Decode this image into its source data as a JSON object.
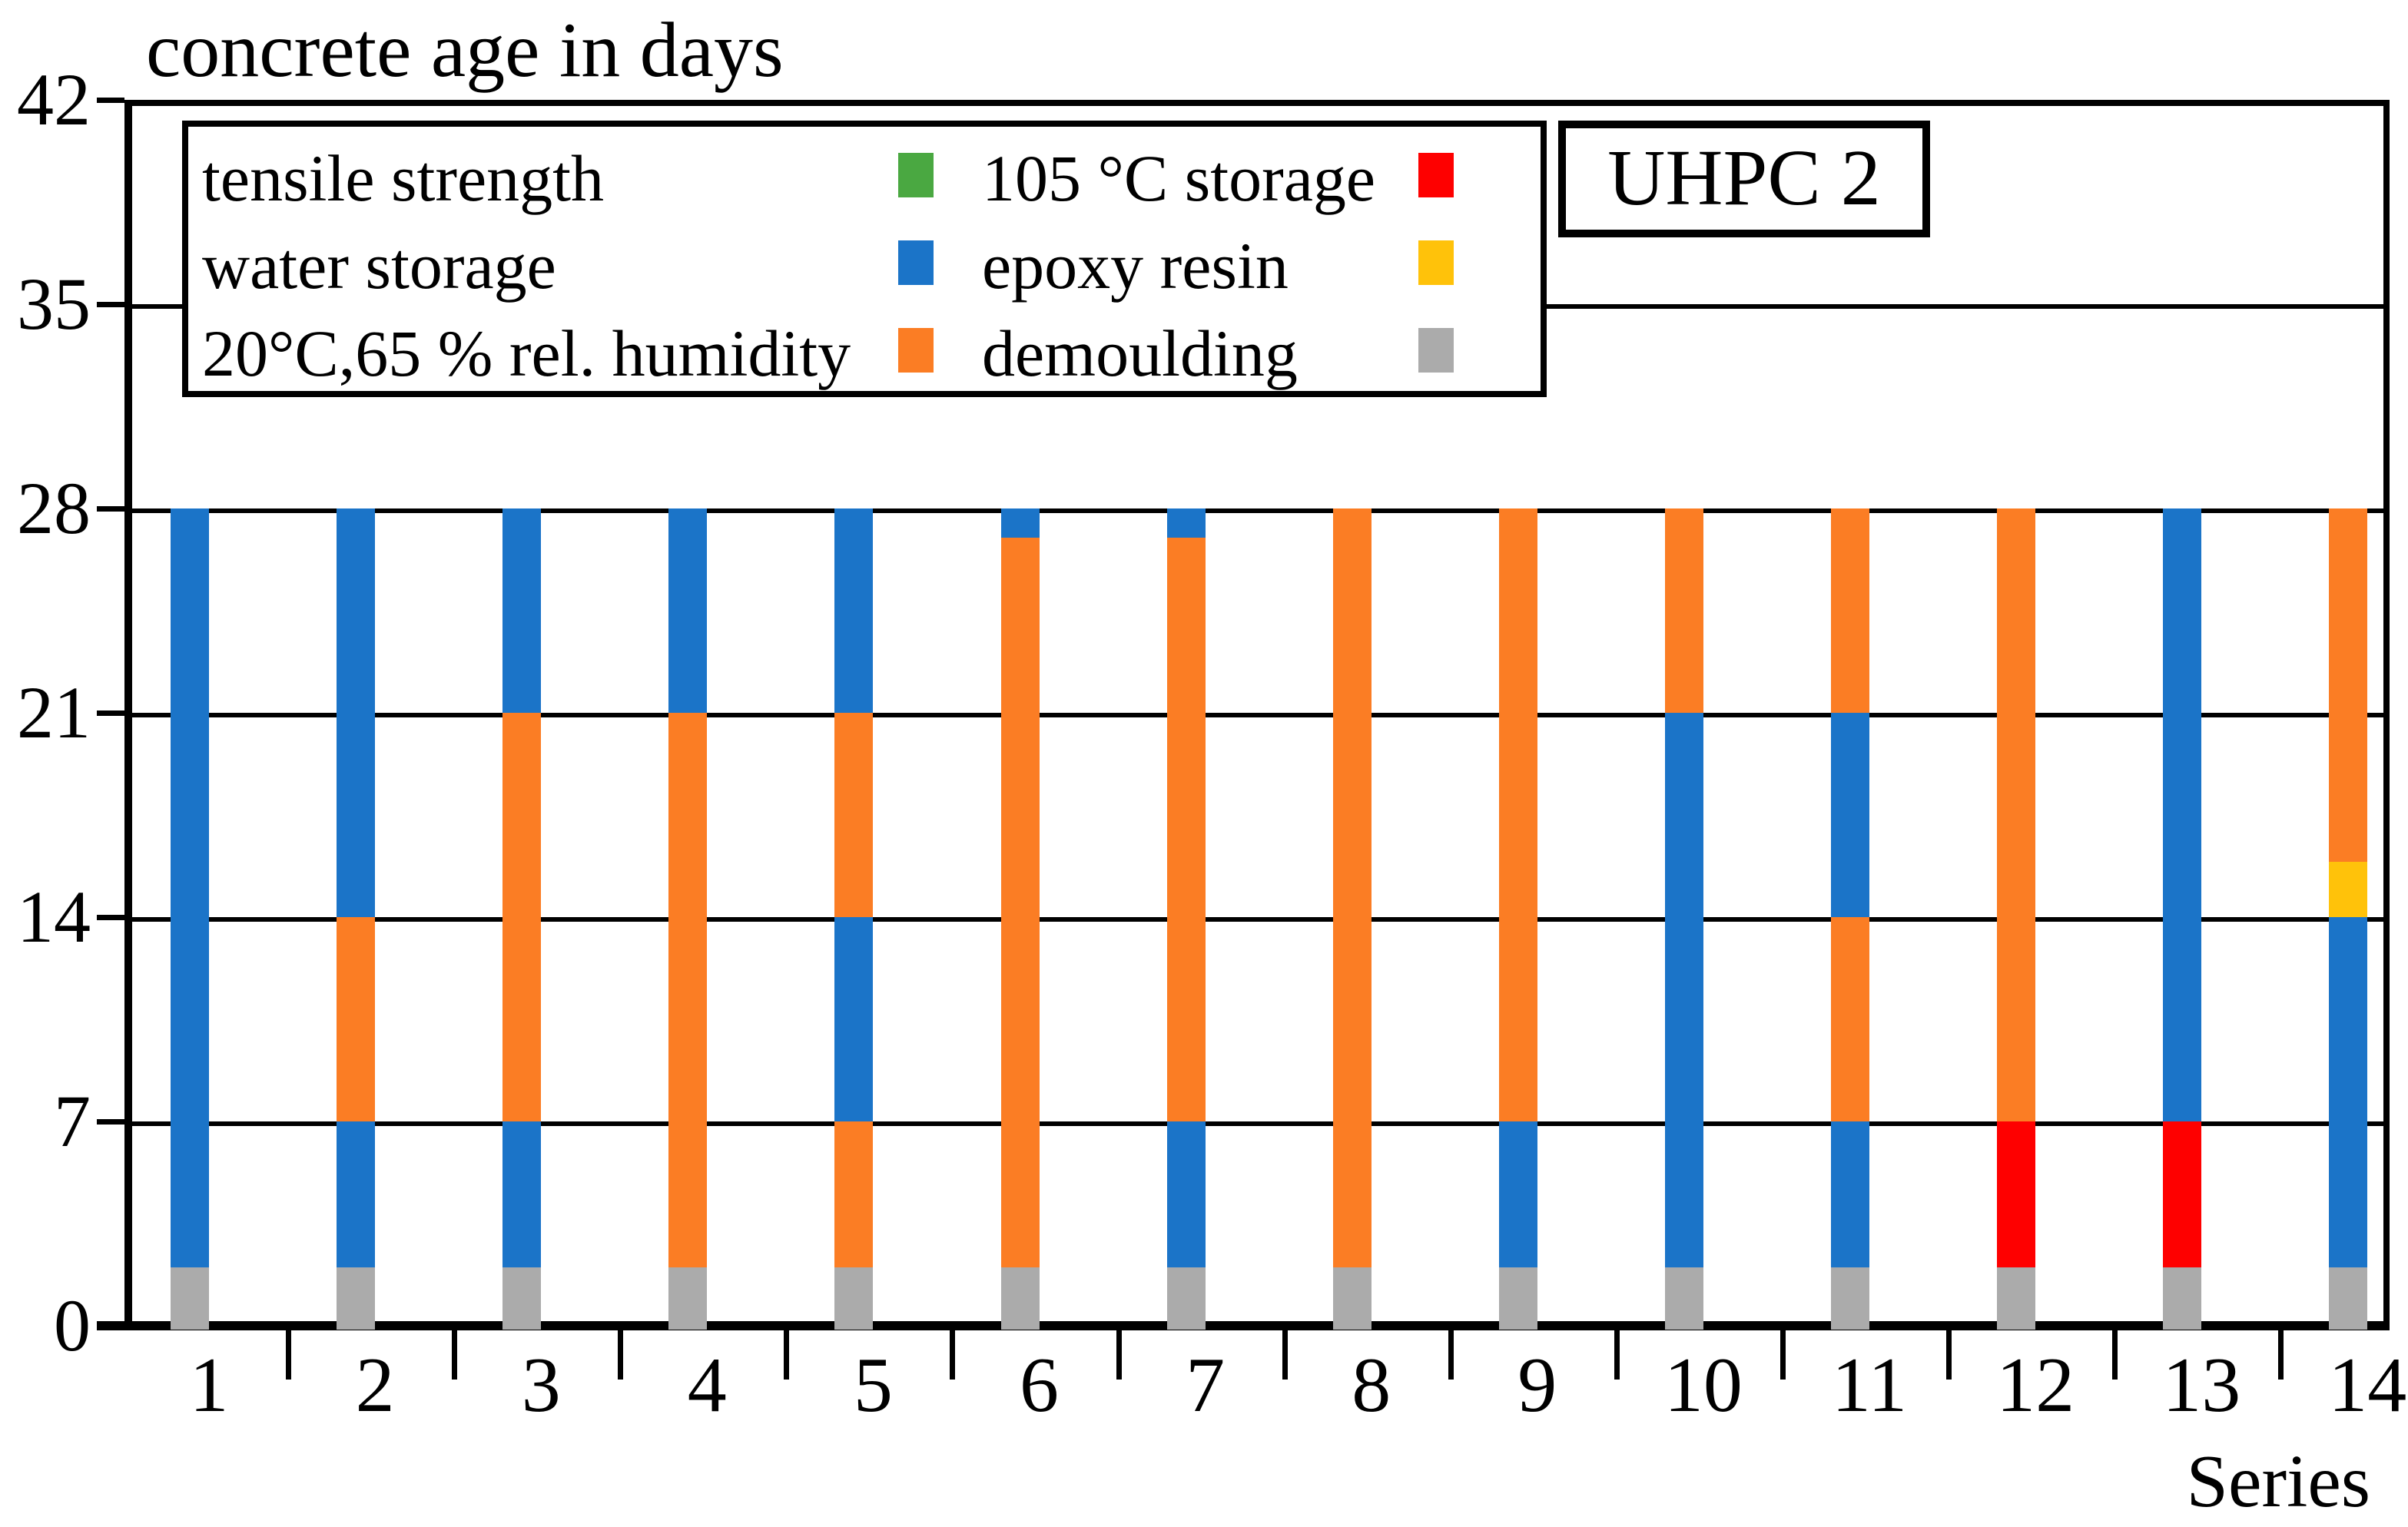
{
  "title": "concrete age in days",
  "annotation_box": {
    "label": "UHPC 2"
  },
  "axis": {
    "x_axis_title": "Series",
    "y_ticks": [
      {
        "label": "42",
        "value": 42
      },
      {
        "label": "35",
        "value": 35
      },
      {
        "label": "28",
        "value": 28
      },
      {
        "label": "21",
        "value": 21
      },
      {
        "label": "14",
        "value": 14
      },
      {
        "label": "7",
        "value": 7
      },
      {
        "label": "0",
        "value": 0
      }
    ],
    "x_tick_labels": [
      "1",
      "2",
      "3",
      "4",
      "5",
      "6",
      "7",
      "8",
      "9",
      "10",
      "11",
      "12",
      "13",
      "14"
    ]
  },
  "colors": {
    "tensile": "#4AA841",
    "water": "#1B74C8",
    "humidity": "#FB7D24",
    "heat105": "#FE0000",
    "epoxy": "#FFC20A",
    "demoulding": "#ABABAB"
  },
  "legend": {
    "columns": [
      {
        "items": [
          {
            "label": "tensile strength",
            "key": "tensile"
          },
          {
            "label": "water storage",
            "key": "water"
          },
          {
            "label": "20°C,65 % rel. humidity",
            "key": "humidity"
          }
        ]
      },
      {
        "items": [
          {
            "label": "105 °C storage",
            "key": "heat105"
          },
          {
            "label": "epoxy resin",
            "key": "epoxy"
          },
          {
            "label": "demoulding",
            "key": "demoulding"
          }
        ]
      }
    ]
  },
  "chart_data": {
    "type": "bar",
    "stacked": true,
    "title": "concrete age in days",
    "xlabel": "Series",
    "ylabel": "concrete age in days",
    "ylim": [
      0,
      42
    ],
    "grid_values": [
      7,
      14,
      21,
      28,
      35,
      42
    ],
    "legend_position": "top-left-inside",
    "categories": [
      "1",
      "2",
      "3",
      "4",
      "5",
      "6",
      "7",
      "8",
      "9",
      "10",
      "11",
      "12",
      "13",
      "14"
    ],
    "bars": [
      {
        "category": "1",
        "segments": [
          [
            "demoulding",
            0,
            2
          ],
          [
            "water",
            2,
            28
          ]
        ]
      },
      {
        "category": "2",
        "segments": [
          [
            "demoulding",
            0,
            2
          ],
          [
            "water",
            2,
            7
          ],
          [
            "humidity",
            7,
            14
          ],
          [
            "water",
            14,
            28
          ]
        ]
      },
      {
        "category": "3",
        "segments": [
          [
            "demoulding",
            0,
            2
          ],
          [
            "water",
            2,
            7
          ],
          [
            "humidity",
            7,
            21
          ],
          [
            "water",
            21,
            28
          ]
        ]
      },
      {
        "category": "4",
        "segments": [
          [
            "demoulding",
            0,
            2
          ],
          [
            "humidity",
            2,
            21
          ],
          [
            "water",
            21,
            28
          ]
        ]
      },
      {
        "category": "5",
        "segments": [
          [
            "demoulding",
            0,
            2
          ],
          [
            "humidity",
            2,
            7
          ],
          [
            "water",
            7,
            14
          ],
          [
            "humidity",
            14,
            21
          ],
          [
            "water",
            21,
            28
          ]
        ]
      },
      {
        "category": "6",
        "segments": [
          [
            "demoulding",
            0,
            2
          ],
          [
            "humidity",
            2,
            27
          ],
          [
            "water",
            27,
            28
          ]
        ]
      },
      {
        "category": "7",
        "segments": [
          [
            "demoulding",
            0,
            2
          ],
          [
            "water",
            2,
            7
          ],
          [
            "humidity",
            7,
            27
          ],
          [
            "water",
            27,
            28
          ]
        ]
      },
      {
        "category": "8",
        "segments": [
          [
            "demoulding",
            0,
            2
          ],
          [
            "humidity",
            2,
            28
          ]
        ]
      },
      {
        "category": "9",
        "segments": [
          [
            "demoulding",
            0,
            2
          ],
          [
            "water",
            2,
            7
          ],
          [
            "humidity",
            7,
            28
          ]
        ]
      },
      {
        "category": "10",
        "segments": [
          [
            "demoulding",
            0,
            2
          ],
          [
            "water",
            2,
            21
          ],
          [
            "humidity",
            21,
            28
          ]
        ]
      },
      {
        "category": "11",
        "segments": [
          [
            "demoulding",
            0,
            2
          ],
          [
            "water",
            2,
            7
          ],
          [
            "humidity",
            7,
            14
          ],
          [
            "water",
            14,
            21
          ],
          [
            "humidity",
            21,
            28
          ]
        ]
      },
      {
        "category": "12",
        "segments": [
          [
            "demoulding",
            0,
            2
          ],
          [
            "heat105",
            2,
            7
          ],
          [
            "humidity",
            7,
            28
          ]
        ]
      },
      {
        "category": "13",
        "segments": [
          [
            "demoulding",
            0,
            2
          ],
          [
            "heat105",
            2,
            7
          ],
          [
            "water",
            7,
            28
          ]
        ]
      },
      {
        "category": "14",
        "segments": [
          [
            "demoulding",
            0,
            2
          ],
          [
            "water",
            2,
            14
          ],
          [
            "epoxy",
            14,
            15.9
          ],
          [
            "humidity",
            15.9,
            28
          ]
        ]
      }
    ]
  }
}
